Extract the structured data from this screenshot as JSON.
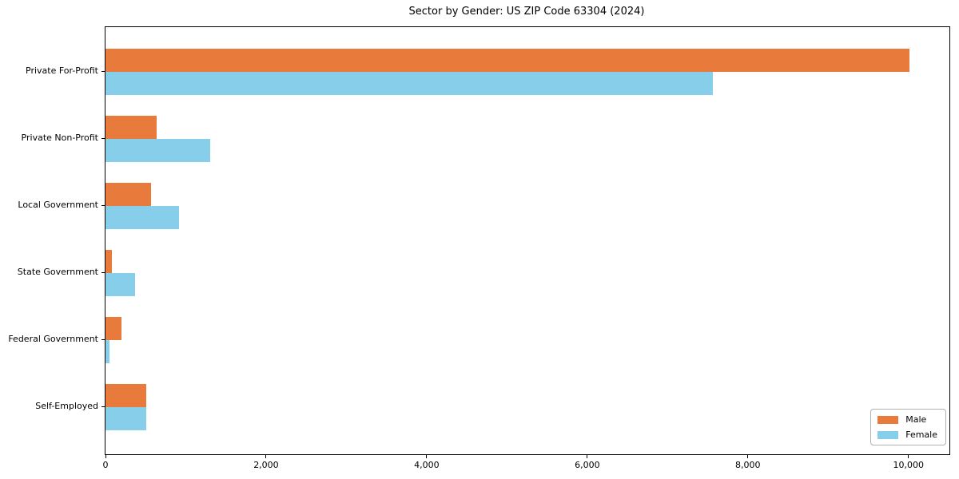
{
  "chart_data": {
    "type": "bar",
    "orientation": "horizontal",
    "title": "Sector by Gender: US ZIP Code 63304 (2024)",
    "categories": [
      "Private For-Profit",
      "Private Non-Profit",
      "Local Government",
      "State Government",
      "Federal Government",
      "Self-Employed"
    ],
    "series": [
      {
        "name": "Male",
        "color": "#e87b3c",
        "values": [
          10010,
          640,
          570,
          80,
          200,
          510
        ]
      },
      {
        "name": "Female",
        "color": "#87ceeb",
        "values": [
          7560,
          1300,
          915,
          370,
          50,
          510
        ]
      }
    ],
    "xlim": [
      0,
      10510
    ],
    "xticks": [
      0,
      2000,
      4000,
      6000,
      8000,
      10000
    ],
    "xtick_labels": [
      "0",
      "2,000",
      "4,000",
      "6,000",
      "8,000",
      "10,000"
    ],
    "grid": false,
    "legend_position": "lower right"
  }
}
